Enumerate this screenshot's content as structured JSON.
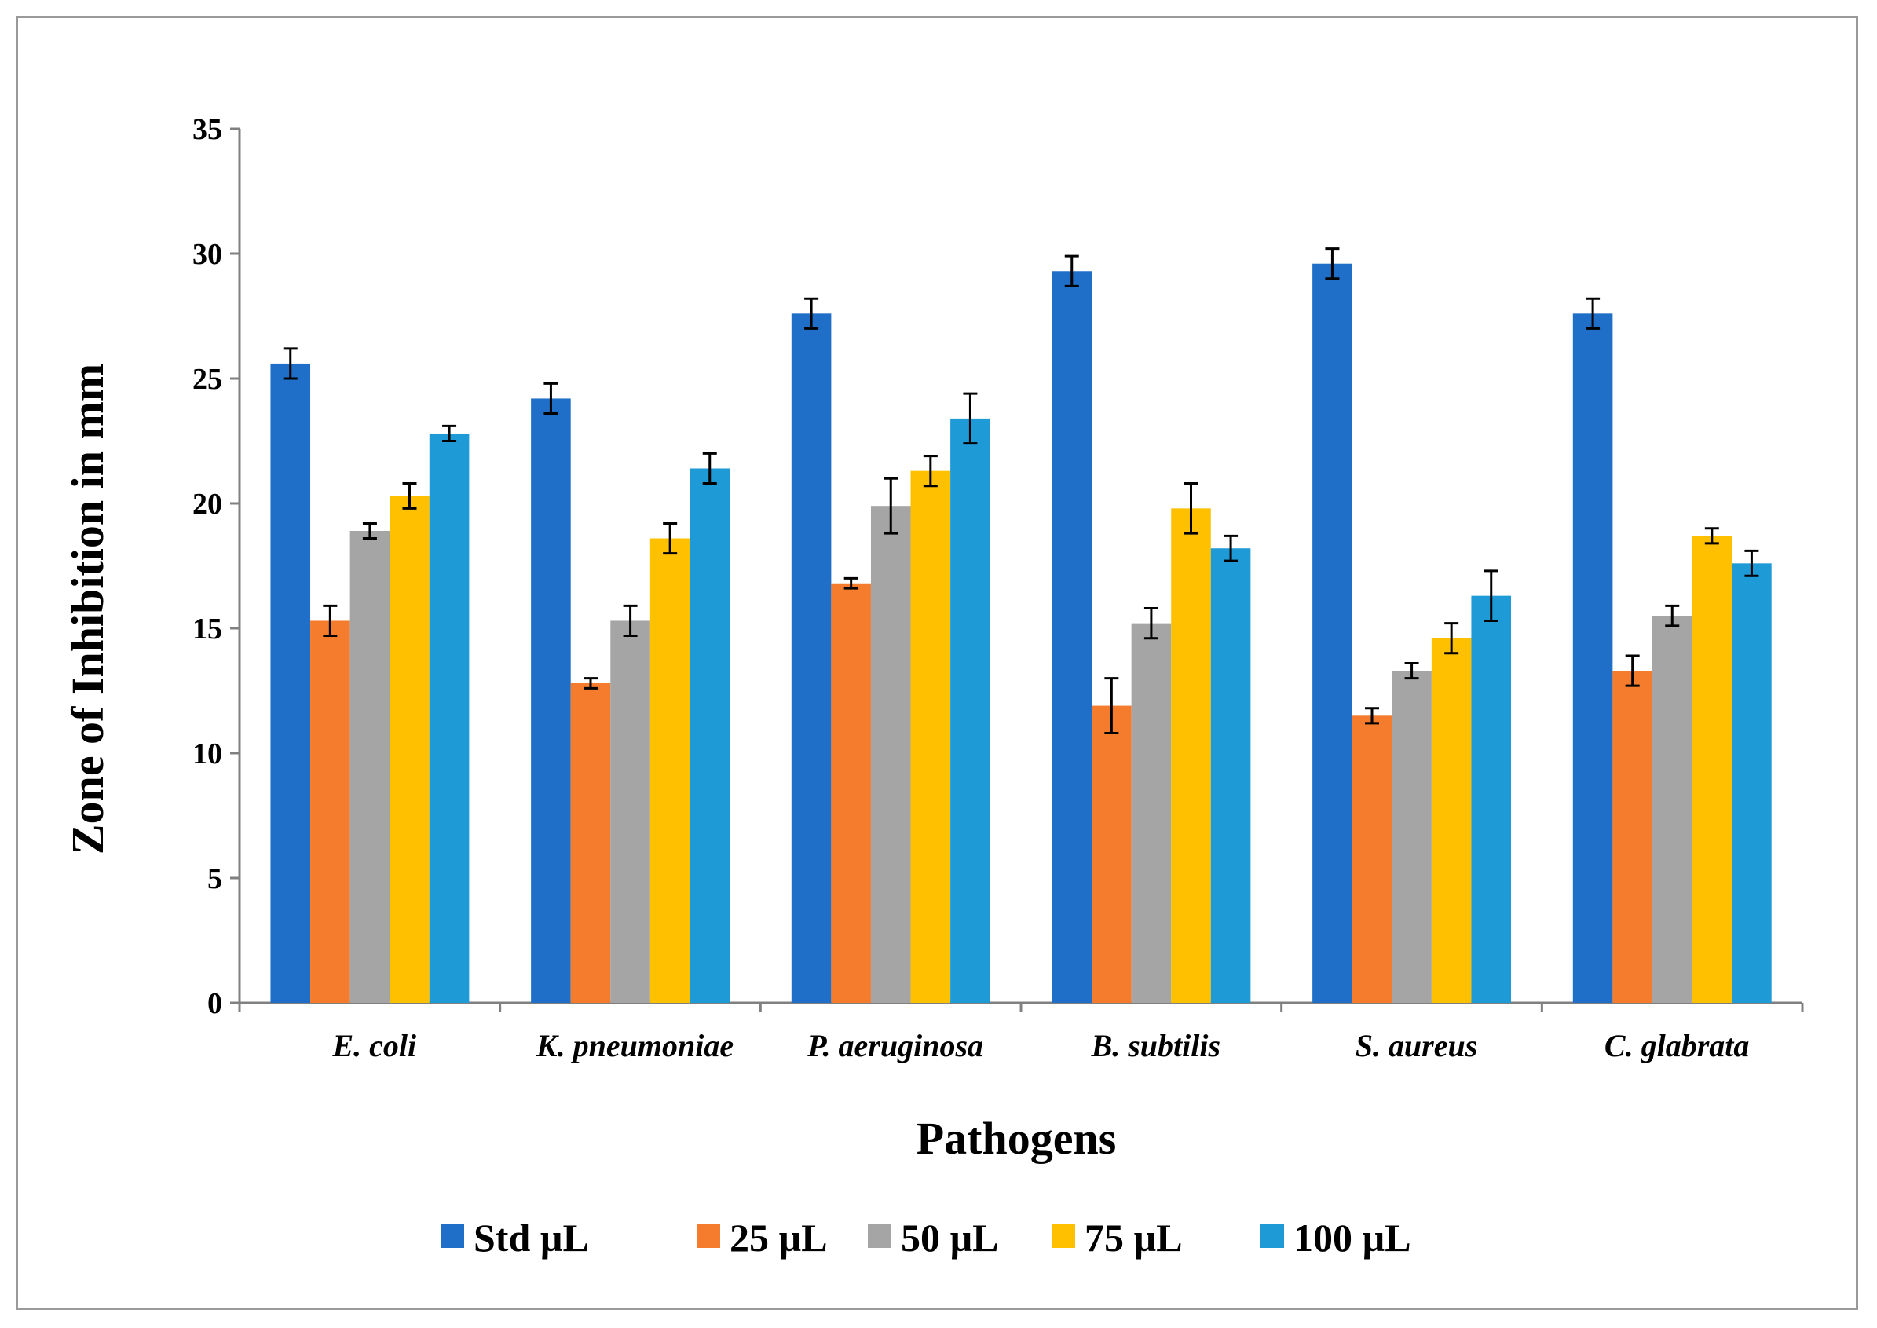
{
  "chart_data": {
    "type": "bar",
    "title": "",
    "xlabel": "Pathogens",
    "ylabel": "Zone of Inhibition in mm",
    "ylim": [
      0,
      35
    ],
    "yticks": [
      0,
      5,
      10,
      15,
      20,
      25,
      30,
      35
    ],
    "grid": false,
    "legend_position": "bottom",
    "categories": [
      "E. coli",
      "K. pneumoniae",
      "P. aeruginosa",
      "B. subtilis",
      "S. aureus",
      "C. glabrata"
    ],
    "series": [
      {
        "name": "Std  µL",
        "color": "#1f6fc9",
        "values": [
          25.6,
          24.2,
          27.6,
          29.3,
          29.6,
          27.6
        ],
        "errors": [
          0.6,
          0.6,
          0.6,
          0.6,
          0.6,
          0.6
        ]
      },
      {
        "name": "25 µL",
        "color": "#f47c2c",
        "values": [
          15.3,
          12.8,
          16.8,
          11.9,
          11.5,
          13.3
        ],
        "errors": [
          0.6,
          0.2,
          0.2,
          1.1,
          0.3,
          0.6
        ]
      },
      {
        "name": "50 µL",
        "color": "#a5a5a5",
        "values": [
          18.9,
          15.3,
          19.9,
          15.2,
          13.3,
          15.5
        ],
        "errors": [
          0.3,
          0.6,
          1.1,
          0.6,
          0.3,
          0.4
        ]
      },
      {
        "name": "75  µL",
        "color": "#ffc000",
        "values": [
          20.3,
          18.6,
          21.3,
          19.8,
          14.6,
          18.7
        ],
        "errors": [
          0.5,
          0.6,
          0.6,
          1.0,
          0.6,
          0.3
        ]
      },
      {
        "name": "100  µL",
        "color": "#1e9ad6",
        "values": [
          22.8,
          21.4,
          23.4,
          18.2,
          16.3,
          17.6
        ],
        "errors": [
          0.3,
          0.6,
          1.0,
          0.5,
          1.0,
          0.5
        ]
      }
    ]
  }
}
